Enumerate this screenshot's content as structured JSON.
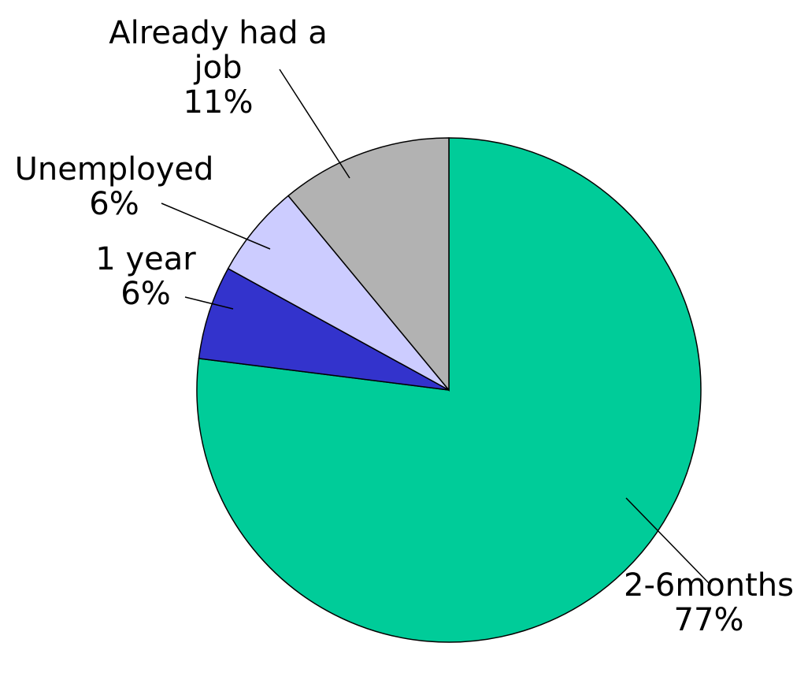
{
  "chart_data": {
    "type": "pie",
    "title": "",
    "legend": "none",
    "slices": [
      {
        "name": "2-6months",
        "value": 77,
        "color": "#00CC99",
        "label_lines": [
          "2-6months",
          "77%"
        ]
      },
      {
        "name": "1 year",
        "value": 6,
        "color": "#3333CC",
        "label_lines": [
          "1 year",
          "6%"
        ]
      },
      {
        "name": "Unemployed",
        "value": 6,
        "color": "#CCCCFF",
        "label_lines": [
          "Unemployed",
          "6%"
        ]
      },
      {
        "name": "Already had a job",
        "value": 11,
        "color": "#B2B2B2",
        "label_lines": [
          "Already had a",
          "job",
          "11%"
        ]
      }
    ],
    "start": "12 o'clock",
    "direction": "clockwise"
  }
}
